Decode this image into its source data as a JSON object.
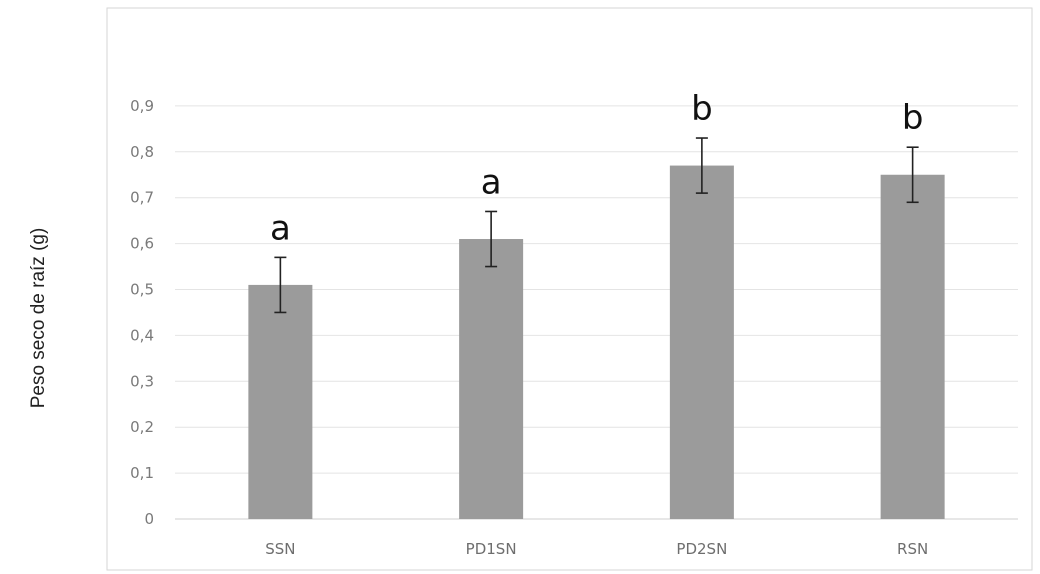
{
  "chart_data": {
    "type": "bar",
    "title": "",
    "xlabel": "",
    "ylabel": "Peso seco de raíz (g)",
    "categories": [
      "SSN",
      "PD1SN",
      "PD2SN",
      "RSN"
    ],
    "values": [
      0.51,
      0.61,
      0.77,
      0.75
    ],
    "error": [
      0.06,
      0.06,
      0.06,
      0.06
    ],
    "significance_letters": [
      "a",
      "a",
      "b",
      "b"
    ],
    "ylim": [
      0,
      1.0
    ],
    "yticks": [
      0,
      0.1,
      0.2,
      0.3,
      0.4,
      0.5,
      0.6,
      0.7,
      0.8,
      0.9
    ],
    "ytick_labels": [
      "0",
      "0,1",
      "0,2",
      "0,3",
      "0,4",
      "0,5",
      "0,6",
      "0,7",
      "0,8",
      "0,9"
    ],
    "grid": true,
    "legend": "none",
    "colors": {
      "bar": "#9b9b9b",
      "grid": "#e4e4e4",
      "frame": "#d6d6d6",
      "error_bar": "#222222"
    }
  }
}
